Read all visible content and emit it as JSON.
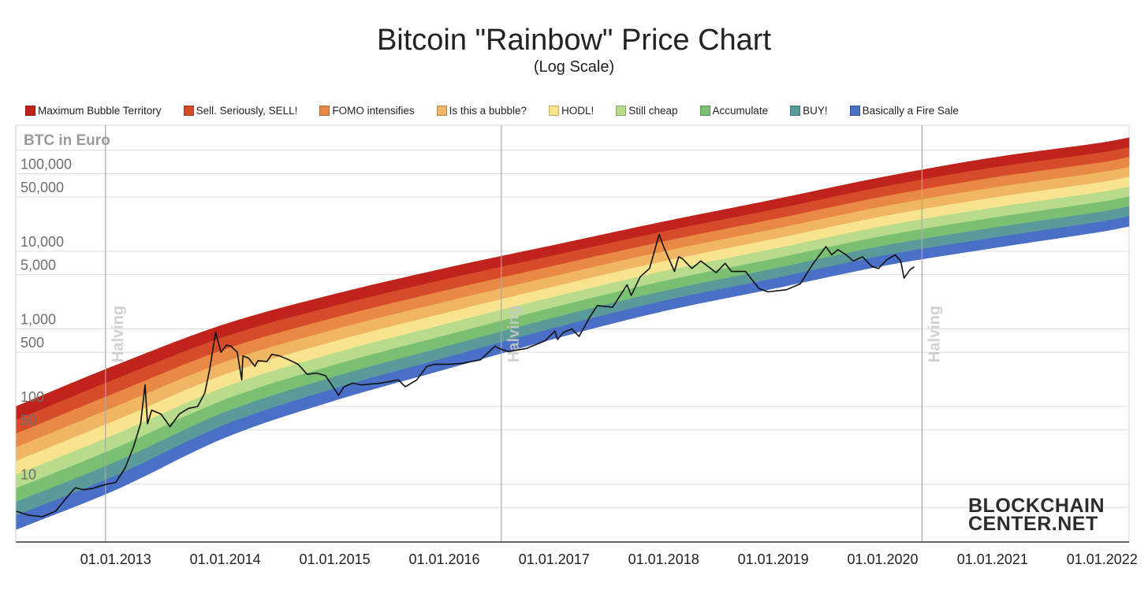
{
  "title": "Bitcoin \"Rainbow\" Price Chart",
  "subtitle": "(Log Scale)",
  "logo": {
    "line1": "BLOCKCHAIN",
    "line2": "CENTER.NET"
  },
  "chart_data": {
    "type": "area",
    "title": "Bitcoin \"Rainbow\" Price Chart",
    "subtitle": "(Log Scale)",
    "ylabel": "BTC in Euro",
    "xlabel": "",
    "y_scale": "log",
    "y_tick_labels": [
      "100,000",
      "50,000",
      "10,000",
      "5,000",
      "1,000",
      "500",
      "100",
      "50",
      "10"
    ],
    "y_tick_values": [
      100000,
      50000,
      10000,
      5000,
      1000,
      500,
      100,
      50,
      10
    ],
    "x_tick_labels": [
      "01.01.2013",
      "01.01.2014",
      "01.01.2015",
      "01.01.2016",
      "01.01.2017",
      "01.01.2018",
      "01.01.2019",
      "01.01.2020",
      "01.01.2021",
      "01.01.2022"
    ],
    "x_tick_values": [
      "2013-01-01",
      "2014-01-01",
      "2015-01-01",
      "2016-01-01",
      "2017-01-01",
      "2018-01-01",
      "2019-01-01",
      "2020-01-01",
      "2021-01-01",
      "2022-01-01"
    ],
    "xlim": [
      "2012-02-03",
      "2022-04-01"
    ],
    "ylim": [
      1.8,
      420000
    ],
    "grid": true,
    "legend_position": "top",
    "bands": [
      {
        "name": "Maximum Bubble Territory",
        "color": "#c0231b"
      },
      {
        "name": "Sell. Seriously, SELL!",
        "color": "#d64c2a"
      },
      {
        "name": "FOMO intensifies",
        "color": "#e88a46"
      },
      {
        "name": "Is this a bubble?",
        "color": "#f0b664"
      },
      {
        "name": "HODL!",
        "color": "#f8e48f"
      },
      {
        "name": "Still cheap",
        "color": "#b9dc8c"
      },
      {
        "name": "Accumulate",
        "color": "#7bbf72"
      },
      {
        "name": "BUY!",
        "color": "#5a9a9a"
      },
      {
        "name": "Basically a Fire Sale",
        "color": "#4a6fc7"
      }
    ],
    "band_upper_edge": {
      "x": [
        "2012-02-03",
        "2013-01-01",
        "2014-01-01",
        "2015-01-01",
        "2016-01-01",
        "2017-01-01",
        "2018-01-01",
        "2019-01-01",
        "2020-01-01",
        "2021-01-01",
        "2022-01-01",
        "2022-04-01"
      ],
      "y": [
        100,
        340,
        1150,
        2800,
        6000,
        12000,
        24000,
        46000,
        90000,
        160000,
        250000,
        290000
      ]
    },
    "band_lower_edge": {
      "x": [
        "2012-02-03",
        "2013-01-01",
        "2014-01-01",
        "2015-01-01",
        "2016-01-01",
        "2017-01-01",
        "2018-01-01",
        "2019-01-01",
        "2020-01-01",
        "2021-01-01",
        "2022-01-01",
        "2022-04-01"
      ],
      "y": [
        2.6,
        8.5,
        40,
        120,
        300,
        750,
        1700,
        3300,
        6500,
        11000,
        18000,
        21000
      ]
    },
    "halving_lines": [
      {
        "date": "2012-11-28",
        "label": "Halving"
      },
      {
        "date": "2016-07-09",
        "label": "Halving"
      },
      {
        "date": "2020-05-11",
        "label": "Halving"
      }
    ],
    "series": [
      {
        "name": "",
        "color": "#111111",
        "x": [
          "2012-02-03",
          "2012-03-15",
          "2012-05-01",
          "2012-06-15",
          "2012-08-01",
          "2012-08-20",
          "2012-09-15",
          "2012-10-15",
          "2012-12-01",
          "2013-01-01",
          "2013-02-01",
          "2013-03-01",
          "2013-03-25",
          "2013-04-09",
          "2013-04-17",
          "2013-05-01",
          "2013-06-01",
          "2013-07-01",
          "2013-08-01",
          "2013-09-01",
          "2013-10-01",
          "2013-10-25",
          "2013-11-10",
          "2013-11-30",
          "2013-12-10",
          "2013-12-18",
          "2014-01-05",
          "2014-01-20",
          "2014-02-10",
          "2014-02-25",
          "2014-03-01",
          "2014-03-20",
          "2014-04-10",
          "2014-04-20",
          "2014-05-20",
          "2014-06-05",
          "2014-07-01",
          "2014-08-01",
          "2014-09-01",
          "2014-10-01",
          "2014-11-01",
          "2014-12-01",
          "2015-01-14",
          "2015-02-01",
          "2015-03-01",
          "2015-04-01",
          "2015-06-01",
          "2015-08-01",
          "2015-08-24",
          "2015-10-01",
          "2015-11-04",
          "2015-12-01",
          "2016-01-15",
          "2016-03-01",
          "2016-05-01",
          "2016-06-18",
          "2016-07-01",
          "2016-08-01",
          "2016-10-01",
          "2016-12-01",
          "2017-01-04",
          "2017-01-12",
          "2017-02-01",
          "2017-03-01",
          "2017-03-25",
          "2017-05-01",
          "2017-05-25",
          "2017-07-15",
          "2017-09-01",
          "2017-09-15",
          "2017-10-15",
          "2017-11-15",
          "2017-12-17",
          "2018-01-01",
          "2018-02-06",
          "2018-02-20",
          "2018-03-05",
          "2018-04-05",
          "2018-05-05",
          "2018-06-25",
          "2018-07-25",
          "2018-08-15",
          "2018-10-01",
          "2018-11-15",
          "2018-12-15",
          "2019-01-15",
          "2019-02-15",
          "2019-04-01",
          "2019-05-15",
          "2019-06-26",
          "2019-07-15",
          "2019-08-05",
          "2019-09-01",
          "2019-09-25",
          "2019-10-26",
          "2019-11-25",
          "2019-12-18",
          "2020-01-15",
          "2020-02-12",
          "2020-03-01",
          "2020-03-12",
          "2020-04-01",
          "2020-04-15"
        ],
        "y": [
          4.5,
          4.0,
          3.8,
          4.5,
          7.5,
          9.0,
          8.5,
          8.8,
          10,
          10.5,
          16,
          30,
          60,
          190,
          60,
          90,
          80,
          55,
          80,
          95,
          100,
          150,
          300,
          900,
          650,
          500,
          620,
          600,
          500,
          220,
          450,
          420,
          330,
          390,
          380,
          470,
          450,
          400,
          350,
          260,
          270,
          250,
          140,
          180,
          200,
          190,
          200,
          220,
          180,
          220,
          330,
          350,
          350,
          360,
          400,
          600,
          560,
          510,
          560,
          700,
          940,
          730,
          900,
          1000,
          800,
          1450,
          2000,
          1900,
          3700,
          2700,
          4700,
          6000,
          16500,
          11500,
          5500,
          8500,
          8000,
          6000,
          7500,
          5300,
          7000,
          5500,
          5500,
          3300,
          3000,
          3100,
          3200,
          3800,
          7000,
          11500,
          9000,
          10500,
          9000,
          7500,
          8500,
          6400,
          6000,
          7800,
          9000,
          7500,
          4500,
          5800,
          6300
        ]
      }
    ]
  }
}
